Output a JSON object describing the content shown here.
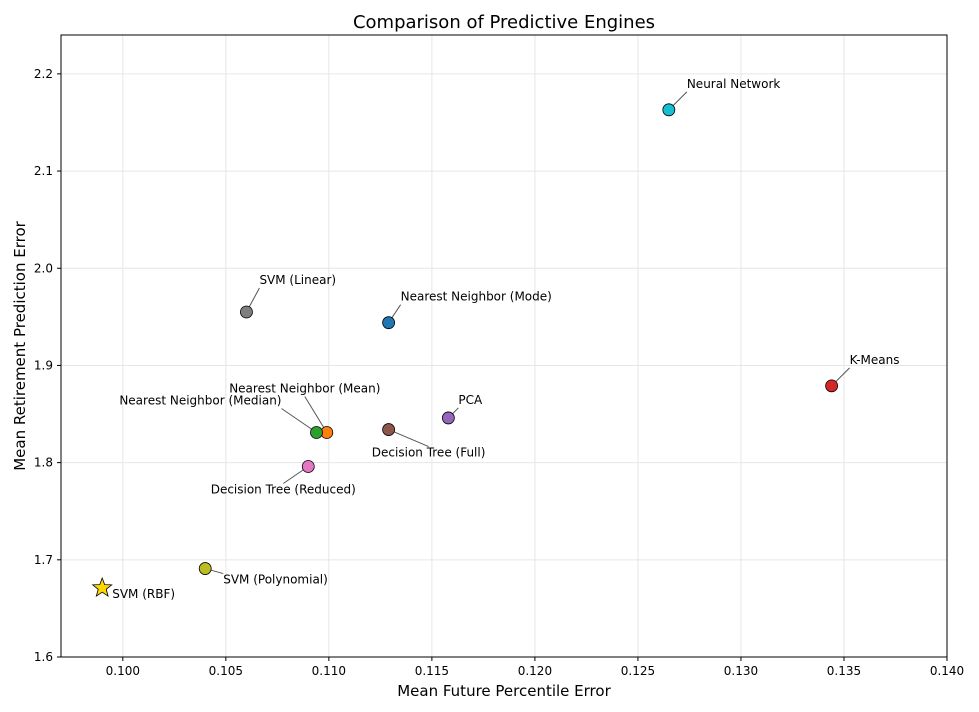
{
  "chart_data": {
    "type": "scatter",
    "title": "Comparison of Predictive Engines",
    "xlabel": "Mean Future Percentile Error",
    "ylabel": "Mean Retirement Prediction Error",
    "xlim": [
      0.097,
      0.14
    ],
    "ylim": [
      1.6,
      2.24
    ],
    "xticks": [
      "0.100",
      "0.105",
      "0.110",
      "0.115",
      "0.120",
      "0.125",
      "0.130",
      "0.135",
      "0.140"
    ],
    "yticks": [
      "1.6",
      "1.7",
      "1.8",
      "1.9",
      "2.0",
      "2.1",
      "2.2"
    ],
    "grid": true,
    "points": [
      {
        "label": "Neural Network",
        "x": 0.1265,
        "y": 2.163,
        "color": "#17becf",
        "marker": "circle"
      },
      {
        "label": "SVM (Linear)",
        "x": 0.106,
        "y": 1.955,
        "color": "#7f7f7f",
        "marker": "circle"
      },
      {
        "label": "Nearest Neighbor (Mode)",
        "x": 0.1129,
        "y": 1.944,
        "color": "#1f77b4",
        "marker": "circle"
      },
      {
        "label": "K-Means",
        "x": 0.1344,
        "y": 1.879,
        "color": "#d62728",
        "marker": "circle"
      },
      {
        "label": "PCA",
        "x": 0.1158,
        "y": 1.846,
        "color": "#9467bd",
        "marker": "circle"
      },
      {
        "label": "Nearest Neighbor (Mean)",
        "x": 0.1099,
        "y": 1.831,
        "color": "#ff7f0e",
        "marker": "circle"
      },
      {
        "label": "Nearest Neighbor (Median)",
        "x": 0.1094,
        "y": 1.831,
        "color": "#2ca02c",
        "marker": "circle"
      },
      {
        "label": "Decision Tree (Full)",
        "x": 0.1129,
        "y": 1.834,
        "color": "#8c564b",
        "marker": "circle"
      },
      {
        "label": "Decision Tree (Reduced)",
        "x": 0.109,
        "y": 1.796,
        "color": "#e377c2",
        "marker": "circle"
      },
      {
        "label": "SVM (Polynomial)",
        "x": 0.104,
        "y": 1.691,
        "color": "#bcbd22",
        "marker": "circle"
      },
      {
        "label": "SVM (RBF)",
        "x": 0.099,
        "y": 1.671,
        "color": "#ffd700",
        "marker": "star"
      }
    ]
  }
}
